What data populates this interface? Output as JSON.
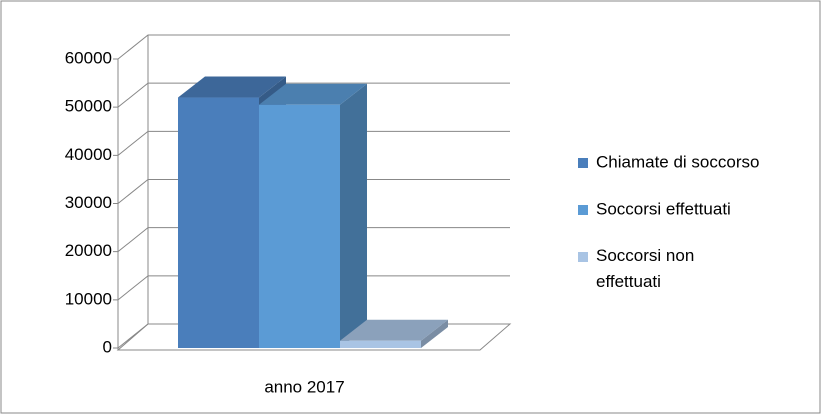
{
  "chart_data": {
    "type": "bar3d",
    "categories": [
      "anno 2017"
    ],
    "series": [
      {
        "name": "Chiamate di soccorso",
        "color": "#4a7ebb",
        "values": [
          52000
        ]
      },
      {
        "name": "Soccorsi effettuati",
        "color": "#5b9bd5",
        "values": [
          50500
        ]
      },
      {
        "name": "Soccorsi non effettuati",
        "color": "#a9c4e4",
        "values": [
          1500
        ]
      }
    ],
    "ylim": [
      0,
      60000
    ],
    "yticks": [
      0,
      10000,
      20000,
      30000,
      40000,
      50000,
      60000
    ],
    "grid": true,
    "legend": "right"
  }
}
